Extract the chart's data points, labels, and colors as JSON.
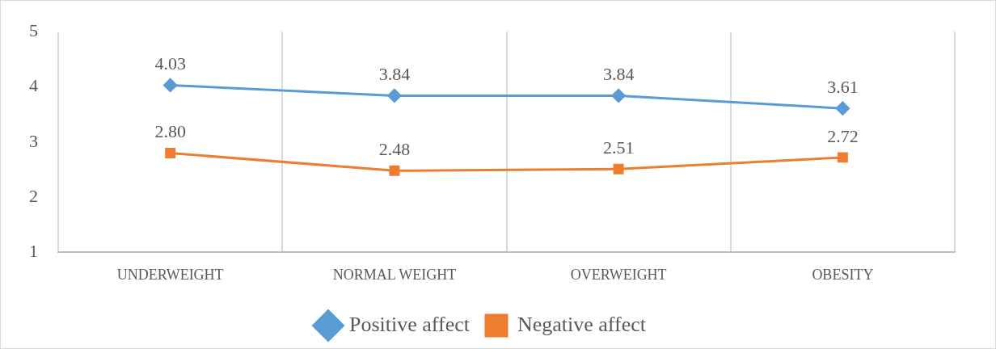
{
  "chart_data": {
    "type": "line",
    "categories": [
      "UNDERWEIGHT",
      "NORMAL WEIGHT",
      "OVERWEIGHT",
      "OBESITY"
    ],
    "series": [
      {
        "name": "Positive affect",
        "color": "#5b9bd5",
        "marker": "diamond",
        "values": [
          4.03,
          3.84,
          3.84,
          3.61
        ],
        "value_labels": [
          "4.03",
          "3.84",
          "3.84",
          "3.61"
        ]
      },
      {
        "name": "Negative affect",
        "color": "#ed7d31",
        "marker": "square",
        "values": [
          2.8,
          2.48,
          2.51,
          2.72
        ],
        "value_labels": [
          "2.80",
          "2.48",
          "2.51",
          "2.72"
        ]
      }
    ],
    "ylim": [
      1,
      5
    ],
    "yticks": [
      1,
      2,
      3,
      4,
      5
    ],
    "grid": "x",
    "legend": "bottom"
  }
}
